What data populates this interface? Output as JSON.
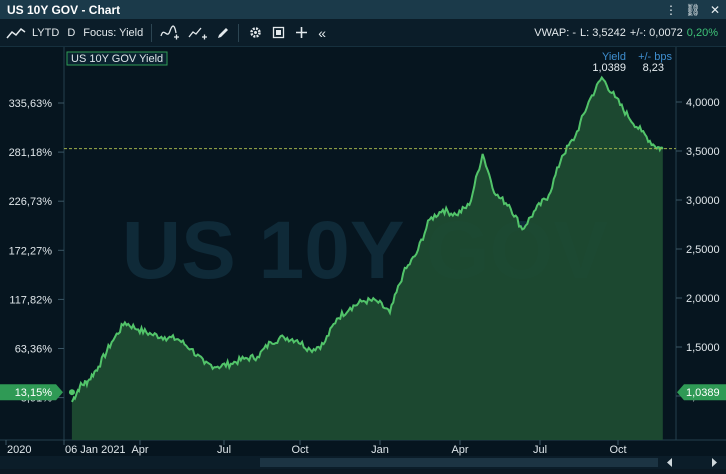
{
  "window": {
    "title": "US 10Y GOV - Chart",
    "controls": [
      "⋮",
      "⛓",
      "✕"
    ]
  },
  "toolbar": {
    "period": "LYTD",
    "interval": "D",
    "focus": "Focus: Yield",
    "vwap": "VWAP: -",
    "last": "L: 3,5242",
    "change_label": "+/-: 0,0072",
    "change_pct": "0,20%",
    "collapse": "«"
  },
  "legend": {
    "series_label": "US 10Y GOV Yield",
    "yield_header": "Yield",
    "bps_header": "+/- bps",
    "yield_value": "1,0389",
    "bps_value": "8,23"
  },
  "watermark": "US 10Y GOV",
  "left_axis": {
    "ticks": [
      "335,63%",
      "281,18%",
      "226,73%",
      "172,27%",
      "117,82%",
      "63,36%",
      "8,91%"
    ],
    "current_label": "13,15%"
  },
  "right_axis": {
    "ticks": [
      "4,0000",
      "3,5000",
      "3,0000",
      "2,5000",
      "2,0000",
      "1,5000",
      "1,0000"
    ],
    "current_label": "1,0389"
  },
  "x_axis": {
    "ticks": [
      "2020",
      "06 Jan 2021",
      "Apr",
      "Jul",
      "Oct",
      "Jan",
      "Apr",
      "Jul",
      "Oct"
    ]
  },
  "colors": {
    "line": "#52c46a",
    "fill": "#1e4b32",
    "label_bg": "#2f9a55",
    "crosshair": "#9fb04a"
  },
  "chart_data": {
    "type": "area",
    "title": "US 10Y GOV Yield",
    "x_unit": "months since 06 Jan 2021",
    "x": [
      0,
      0.3,
      0.6,
      1,
      1.5,
      2,
      2.5,
      3,
      3.5,
      4,
      4.5,
      5,
      5.5,
      6,
      6.5,
      7,
      7.5,
      8,
      8.5,
      9,
      9.5,
      10,
      10.5,
      11,
      11.5,
      12,
      12.5,
      13,
      13.5,
      14,
      14.5,
      15,
      15.5,
      16,
      16.5,
      17,
      17.5,
      18,
      18.5,
      19,
      19.5,
      20,
      20.5,
      21,
      21.5,
      22,
      22.3
    ],
    "y": [
      0.94,
      1.1,
      1.15,
      1.3,
      1.55,
      1.75,
      1.68,
      1.63,
      1.6,
      1.58,
      1.48,
      1.33,
      1.3,
      1.33,
      1.38,
      1.4,
      1.55,
      1.6,
      1.57,
      1.47,
      1.53,
      1.79,
      1.9,
      1.97,
      1.97,
      1.85,
      2.25,
      2.45,
      2.8,
      2.9,
      2.85,
      2.95,
      3.47,
      3.05,
      2.95,
      2.7,
      2.9,
      3.05,
      3.45,
      3.65,
      4.0,
      4.25,
      4.05,
      3.85,
      3.7,
      3.55,
      3.52
    ],
    "xlim": [
      -0.3,
      22.8
    ],
    "ylim": [
      0.85,
      4.3
    ],
    "right_axis_ticks": [
      1.0,
      1.5,
      2.0,
      2.5,
      3.0,
      3.5,
      4.0
    ],
    "current_value": 3.5242,
    "start_value": 1.0389,
    "grid": false,
    "legend": "top-right"
  }
}
